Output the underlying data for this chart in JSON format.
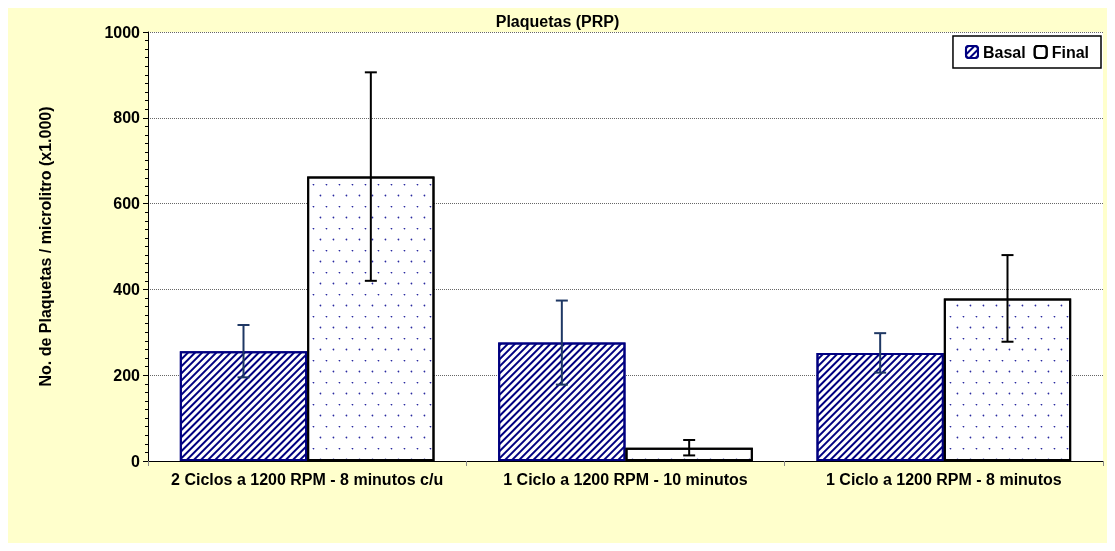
{
  "chart_data": {
    "type": "bar",
    "title": "Plaquetas (PRP)",
    "ylabel": "No. de Plaquetas / microlitro (x1.000)",
    "categories": [
      "2 Ciclos a 1200 RPM - 8 minutos c/u",
      "1 Ciclo a 1200 RPM - 10 minutos",
      "1 Ciclo a 1200 RPM - 8 minutos"
    ],
    "series": [
      {
        "name": "Basal",
        "color": "#000080",
        "values": [
          256,
          276,
          252
        ],
        "errors": [
          61,
          98,
          46
        ]
      },
      {
        "name": "Final",
        "color": "#000000",
        "values": [
          663,
          31,
          379
        ],
        "errors": [
          243,
          18,
          101
        ]
      }
    ],
    "ylim": [
      0,
      1000
    ],
    "yticks": [
      0,
      200,
      400,
      600,
      800,
      1000
    ],
    "grid": "y",
    "legend": "top right"
  }
}
